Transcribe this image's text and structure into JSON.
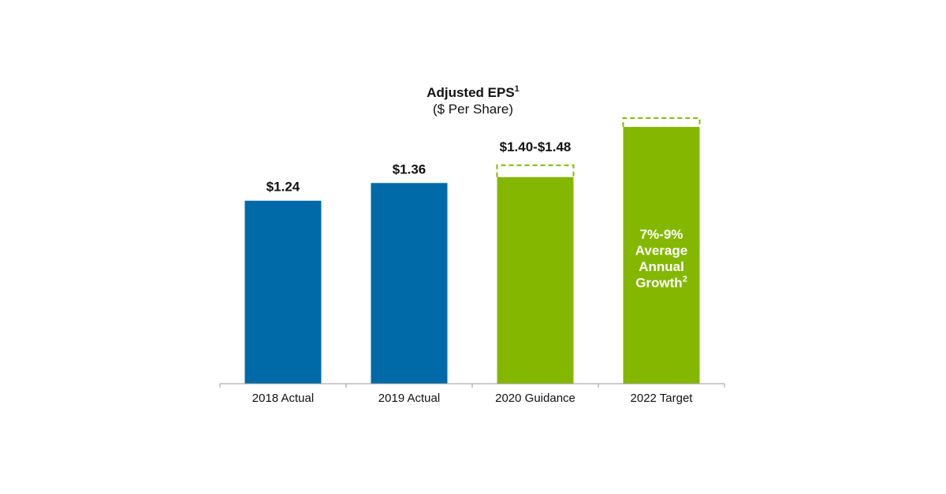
{
  "chart_data": {
    "type": "bar",
    "title": "Adjusted EPS",
    "title_superscript": "1",
    "subtitle": "($ Per Share)",
    "categories": [
      "2018 Actual",
      "2019 Actual",
      "2020 Guidance",
      "2022 Target"
    ],
    "series": [
      {
        "values": [
          1.24,
          1.36,
          1.4,
          1.74
        ],
        "range_high": [
          null,
          null,
          1.48,
          1.8
        ],
        "data_labels": [
          "$1.24",
          "$1.36",
          "$1.40-$1.48",
          ""
        ],
        "colors": [
          "#0069a8",
          "#0069a8",
          "#84b800",
          "#84b800"
        ]
      }
    ],
    "annotations": [
      {
        "category": "2022 Target",
        "lines": [
          "7%-9%",
          "Average",
          "Annual",
          "Growth"
        ],
        "superscript": "2"
      }
    ],
    "ylim": [
      0,
      2.1
    ],
    "grid": false,
    "legend": "none"
  }
}
